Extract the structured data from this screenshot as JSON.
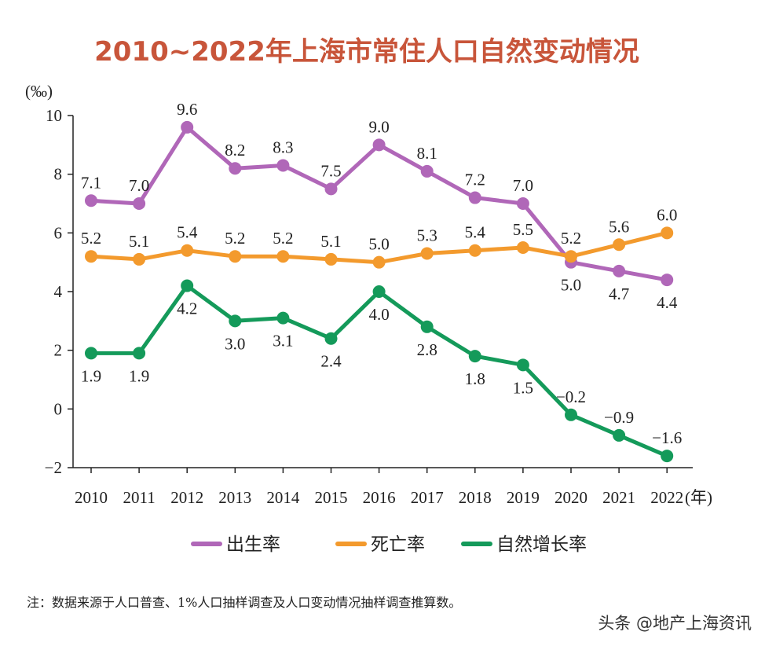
{
  "colors": {
    "title": "#C8553A",
    "birth": "#B067B8",
    "death": "#F39A2D",
    "natural": "#149A5A",
    "axis": "#222222"
  },
  "chart_data": {
    "type": "line",
    "title": "2010~2022年上海市常住人口自然变动情况",
    "ylabel": "(‰)",
    "xlabel_unit": "(年)",
    "categories": [
      "2010",
      "2011",
      "2012",
      "2013",
      "2014",
      "2015",
      "2016",
      "2017",
      "2018",
      "2019",
      "2020",
      "2021",
      "2022"
    ],
    "ylim": [
      -2,
      10
    ],
    "yticks": [
      "10",
      "8",
      "6",
      "4",
      "2",
      "0",
      "−2"
    ],
    "ytick_values": [
      10,
      8,
      6,
      4,
      2,
      0,
      -2
    ],
    "legend_position": "bottom",
    "series": [
      {
        "name": "出生率",
        "color_key": "birth",
        "values": [
          7.1,
          7.0,
          9.6,
          8.2,
          8.3,
          7.5,
          9.0,
          8.1,
          7.2,
          7.0,
          5.0,
          4.7,
          4.4
        ],
        "labels": [
          "7.1",
          "7.0",
          "9.6",
          "8.2",
          "8.3",
          "7.5",
          "9.0",
          "8.1",
          "7.2",
          "7.0",
          "5.0",
          "4.7",
          "4.4"
        ]
      },
      {
        "name": "死亡率",
        "color_key": "death",
        "values": [
          5.2,
          5.1,
          5.4,
          5.2,
          5.2,
          5.1,
          5.0,
          5.3,
          5.4,
          5.5,
          5.2,
          5.6,
          6.0
        ],
        "labels": [
          "5.2",
          "5.1",
          "5.4",
          "5.2",
          "5.2",
          "5.1",
          "5.0",
          "5.3",
          "5.4",
          "5.5",
          "5.2",
          "5.6",
          "6.0"
        ]
      },
      {
        "name": "自然增长率",
        "color_key": "natural",
        "values": [
          1.9,
          1.9,
          4.2,
          3.0,
          3.1,
          2.4,
          4.0,
          2.8,
          1.8,
          1.5,
          -0.2,
          -0.9,
          -1.6
        ],
        "labels": [
          "1.9",
          "1.9",
          "4.2",
          "3.0",
          "3.1",
          "2.4",
          "4.0",
          "2.8",
          "1.8",
          "1.5",
          "−0.2",
          "−0.9",
          "−1.6"
        ]
      }
    ]
  },
  "note": "注：数据来源于人口普查、1%人口抽样调查及人口变动情况抽样调查推算数。",
  "watermark": "头条 @地产上海资讯"
}
